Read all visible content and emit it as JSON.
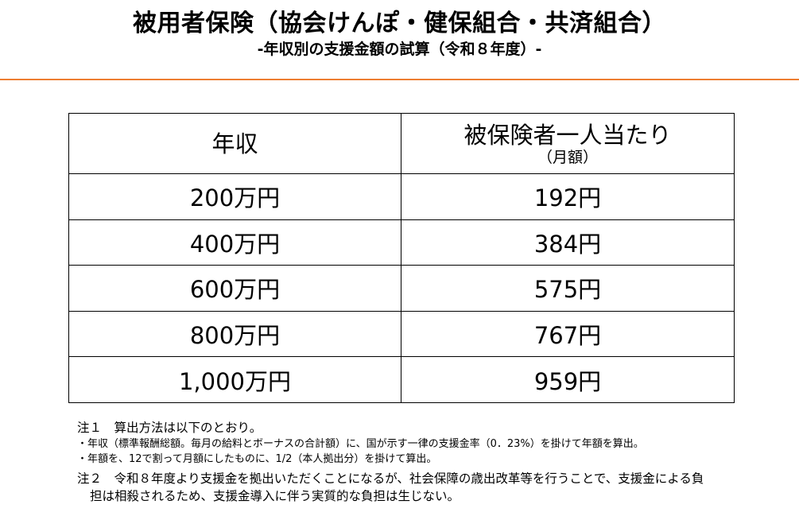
{
  "header": {
    "title": "被用者保険（協会けんぽ・健保組合・共済組合）",
    "subtitle": "-年収別の支援金額の試算（令和８年度）-"
  },
  "colors": {
    "accent_divider": "#ED7D31",
    "border": "#000000",
    "text": "#000000"
  },
  "table": {
    "headers": {
      "col1": "年収",
      "col2_main": "被保険者一人当たり",
      "col2_sub": "（月額）"
    },
    "rows": [
      {
        "income": "200万円",
        "amount": "192円"
      },
      {
        "income": "400万円",
        "amount": "384円"
      },
      {
        "income": "600万円",
        "amount": "575円"
      },
      {
        "income": "800万円",
        "amount": "767円"
      },
      {
        "income": "1,000万円",
        "amount": "959円"
      }
    ]
  },
  "notes": {
    "note1": "注１　算出方法は以下のとおり。",
    "note1_bullet1": "・年収（標準報酬総額。毎月の給料とボーナスの合計額）に、国が示す一律の支援金率（0．23%）を掛けて年額を算出。",
    "note1_bullet2": "・年額を、12で割って月額にしたものに、1/2（本人拠出分）を掛けて算出。",
    "note2_line1": "注２　令和８年度より支援金を拠出いただくことになるが、社会保障の歳出改革等を行うことで、支援金による負",
    "note2_line2": "担は相殺されるため、支援金導入に伴う実質的な負担は生じない。"
  }
}
